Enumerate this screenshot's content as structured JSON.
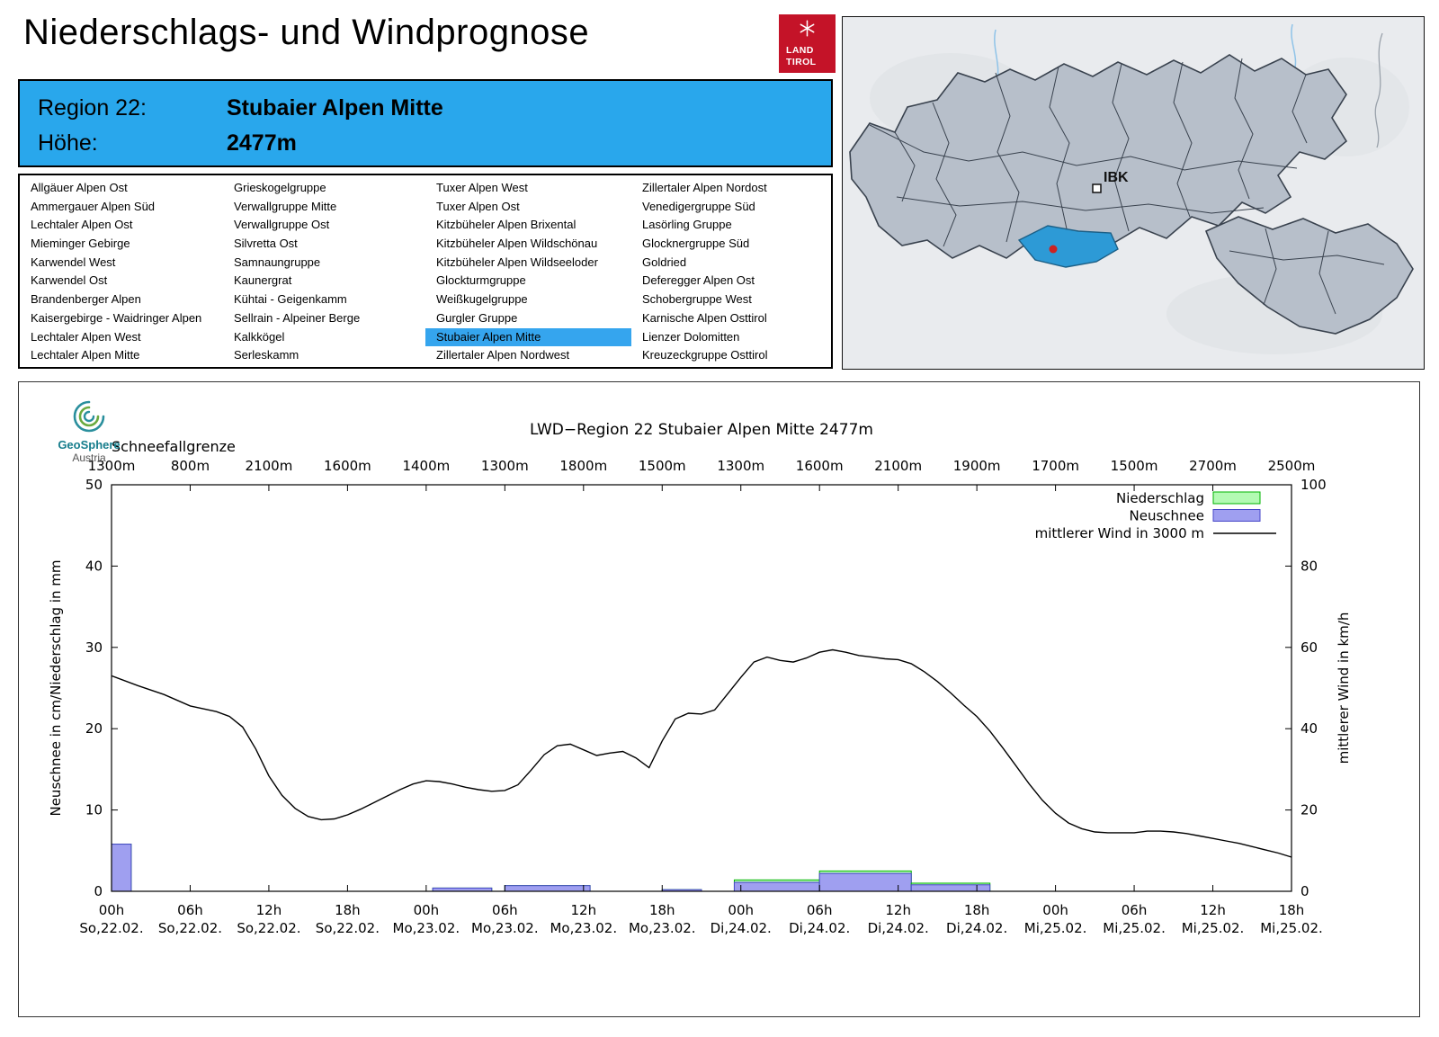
{
  "header": {
    "title": "Niederschlags- und Windprognose",
    "logo_line1": "LAND",
    "logo_line2": "TIROL"
  },
  "region_box": {
    "region_label": "Region 22:",
    "region_value": "Stubaier Alpen Mitte",
    "altitude_label": "Höhe:",
    "altitude_value": "2477m",
    "background": "#29a7ec"
  },
  "region_list": {
    "selected": "Stubaier Alpen Mitte",
    "highlight_color": "#35a5ee",
    "columns": [
      [
        "Allgäuer Alpen Ost",
        "Ammergauer Alpen Süd",
        "Lechtaler Alpen Ost",
        "Mieminger Gebirge",
        "Karwendel West",
        "Karwendel Ost",
        "Brandenberger Alpen",
        "Kaisergebirge - Waidringer Alpen",
        "Lechtaler Alpen West",
        "Lechtaler Alpen Mitte"
      ],
      [
        "Grieskogelgruppe",
        "Verwallgruppe Mitte",
        "Verwallgruppe Ost",
        "Silvretta Ost",
        "Samnaungruppe",
        "Kaunergrat",
        "Kühtai - Geigenkamm",
        "Sellrain - Alpeiner Berge",
        "Kalkkögel",
        "Serleskamm"
      ],
      [
        "Tuxer Alpen West",
        "Tuxer Alpen Ost",
        "Kitzbüheler Alpen Brixental",
        "Kitzbüheler Alpen Wildschönau",
        "Kitzbüheler Alpen Wildseeloder",
        "Glockturmgruppe",
        "Weißkugelgruppe",
        "Gurgler Gruppe",
        "Stubaier Alpen Mitte",
        "Zillertaler Alpen Nordwest"
      ],
      [
        "Zillertaler Alpen Nordost",
        "Venedigergruppe Süd",
        "Lasörling Gruppe",
        "Glocknergruppe Süd",
        "Goldried",
        "Deferegger Alpen Ost",
        "Schobergruppe West",
        "Karnische Alpen Osttirol",
        "Lienzer Dolomitten",
        "Kreuzeckgruppe Osttirol"
      ]
    ]
  },
  "map": {
    "city_label": "IBK",
    "region_fill": "#b7bfca",
    "highlight_fill": "#2d9ad6",
    "marker_color": "#cc2222"
  },
  "footer_logo": {
    "name": "GeoSphere",
    "sub": "Austria"
  },
  "chart_data": {
    "type": "line+bar",
    "title": "LWD−Region 22 Stubaier Alpen Mitte 2477m",
    "snowline_label": "Schneefallgrenze",
    "snowline_values": [
      "1300m",
      "800m",
      "2100m",
      "1600m",
      "1400m",
      "1300m",
      "1800m",
      "1500m",
      "1300m",
      "1600m",
      "2100m",
      "1900m",
      "1700m",
      "1500m",
      "2700m",
      "2500m"
    ],
    "x_ticks": [
      {
        "time": "00h",
        "date": "So,22.02."
      },
      {
        "time": "06h",
        "date": "So,22.02."
      },
      {
        "time": "12h",
        "date": "So,22.02."
      },
      {
        "time": "18h",
        "date": "So,22.02."
      },
      {
        "time": "00h",
        "date": "Mo,23.02."
      },
      {
        "time": "06h",
        "date": "Mo,23.02."
      },
      {
        "time": "12h",
        "date": "Mo,23.02."
      },
      {
        "time": "18h",
        "date": "Mo,23.02."
      },
      {
        "time": "00h",
        "date": "Di,24.02."
      },
      {
        "time": "06h",
        "date": "Di,24.02."
      },
      {
        "time": "12h",
        "date": "Di,24.02."
      },
      {
        "time": "18h",
        "date": "Di,24.02."
      },
      {
        "time": "00h",
        "date": "Mi,25.02."
      },
      {
        "time": "06h",
        "date": "Mi,25.02."
      },
      {
        "time": "12h",
        "date": "Mi,25.02."
      },
      {
        "time": "18h",
        "date": "Mi,25.02."
      }
    ],
    "x_hours": [
      0,
      90
    ],
    "ylabel_left": "Neuschnee in cm/Niederschlag in mm",
    "ylabel_right": "mittlerer Wind in km/h",
    "ylim_left": [
      0,
      50
    ],
    "ylim_right": [
      0,
      100
    ],
    "legend": [
      {
        "label": "Niederschlag",
        "type": "box",
        "color": "#b3fab3",
        "border": "#00b400"
      },
      {
        "label": "Neuschnee",
        "type": "box",
        "color": "#9f9ff0",
        "border": "#4747c8"
      },
      {
        "label": "mittlerer Wind in 3000 m",
        "type": "line",
        "color": "#000000"
      }
    ],
    "colors": {
      "niederschlag_fill": "#b3fab3",
      "niederschlag_border": "#00b400",
      "neuschnee_fill": "#9f9ff0",
      "neuschnee_border": "#4747c8",
      "wind_line": "#000000"
    },
    "wind_series_kmh": [
      [
        0,
        53
      ],
      [
        2,
        50.6
      ],
      [
        4,
        48.4
      ],
      [
        6,
        45.6
      ],
      [
        8,
        44.2
      ],
      [
        9,
        43
      ],
      [
        10,
        40.4
      ],
      [
        11,
        35
      ],
      [
        12,
        28.4
      ],
      [
        13,
        23.6
      ],
      [
        14,
        20.4
      ],
      [
        15,
        18.4
      ],
      [
        16,
        17.6
      ],
      [
        17,
        17.8
      ],
      [
        18,
        18.8
      ],
      [
        19,
        20.2
      ],
      [
        20,
        21.8
      ],
      [
        21,
        23.4
      ],
      [
        22,
        25
      ],
      [
        23,
        26.4
      ],
      [
        24,
        27.2
      ],
      [
        25,
        27
      ],
      [
        26,
        26.4
      ],
      [
        27,
        25.6
      ],
      [
        28,
        25
      ],
      [
        29,
        24.6
      ],
      [
        30,
        24.8
      ],
      [
        31,
        26.2
      ],
      [
        32,
        29.8
      ],
      [
        33,
        33.6
      ],
      [
        34,
        35.8
      ],
      [
        35,
        36.2
      ],
      [
        36,
        34.8
      ],
      [
        37,
        33.4
      ],
      [
        38,
        34
      ],
      [
        39,
        34.4
      ],
      [
        40,
        32.8
      ],
      [
        41,
        30.4
      ],
      [
        42,
        37
      ],
      [
        43,
        42.4
      ],
      [
        44,
        43.8
      ],
      [
        45,
        43.6
      ],
      [
        46,
        44.6
      ],
      [
        47,
        48.6
      ],
      [
        48,
        52.6
      ],
      [
        49,
        56.4
      ],
      [
        50,
        57.6
      ],
      [
        51,
        56.8
      ],
      [
        52,
        56.4
      ],
      [
        53,
        57.4
      ],
      [
        54,
        58.8
      ],
      [
        55,
        59.4
      ],
      [
        56,
        58.8
      ],
      [
        57,
        58
      ],
      [
        58,
        57.6
      ],
      [
        59,
        57.2
      ],
      [
        60,
        57
      ],
      [
        61,
        56
      ],
      [
        62,
        54
      ],
      [
        63,
        51.6
      ],
      [
        64,
        48.8
      ],
      [
        65,
        45.8
      ],
      [
        66,
        43
      ],
      [
        67,
        39.4
      ],
      [
        68,
        35.2
      ],
      [
        69,
        30.8
      ],
      [
        70,
        26.4
      ],
      [
        71,
        22.4
      ],
      [
        72,
        19.2
      ],
      [
        73,
        16.8
      ],
      [
        74,
        15.4
      ],
      [
        75,
        14.6
      ],
      [
        76,
        14.4
      ],
      [
        77,
        14.4
      ],
      [
        78,
        14.4
      ],
      [
        79,
        14.8
      ],
      [
        80,
        14.8
      ],
      [
        81,
        14.6
      ],
      [
        82,
        14.2
      ],
      [
        83,
        13.6
      ],
      [
        84,
        13
      ],
      [
        85,
        12.4
      ],
      [
        86,
        11.8
      ],
      [
        87,
        11
      ],
      [
        88,
        10.2
      ],
      [
        89,
        9.4
      ],
      [
        90,
        8.4
      ]
    ],
    "precipitation_bars": [
      {
        "from_h": 0,
        "to_h": 1.5,
        "niederschlag_mm": 5.8,
        "neuschnee_cm": 5.8
      },
      {
        "from_h": 24.5,
        "to_h": 29,
        "niederschlag_mm": 0.4,
        "neuschnee_cm": 0.4
      },
      {
        "from_h": 30,
        "to_h": 36.5,
        "niederschlag_mm": 0.7,
        "neuschnee_cm": 0.7
      },
      {
        "from_h": 42,
        "to_h": 45,
        "niederschlag_mm": 0.2,
        "neuschnee_cm": 0.2
      },
      {
        "from_h": 47.5,
        "to_h": 54,
        "niederschlag_mm": 1.4,
        "neuschnee_cm": 1.1
      },
      {
        "from_h": 54,
        "to_h": 61,
        "niederschlag_mm": 2.5,
        "neuschnee_cm": 2.2
      },
      {
        "from_h": 61,
        "to_h": 67,
        "niederschlag_mm": 1.0,
        "neuschnee_cm": 0.8
      }
    ]
  }
}
